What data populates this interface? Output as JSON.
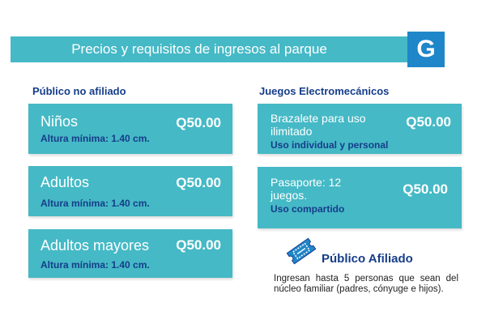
{
  "header": {
    "title": "Precios y requisitos de ingresos al parque",
    "logo_letter": "G"
  },
  "left_section": {
    "title": "Público no afiliado",
    "cards": [
      {
        "name": "Niños",
        "price": "Q50.00",
        "note": "Altura mínima: 1.40 cm."
      },
      {
        "name": "Adultos",
        "price": "Q50.00",
        "note": "Altura mínima: 1.40 cm."
      },
      {
        "name": "Adultos mayores",
        "price": "Q50.00",
        "note": "Altura mínima: 1.40 cm."
      }
    ]
  },
  "right_section": {
    "title": "Juegos Electromecánicos",
    "cards": [
      {
        "name": "Brazalete para uso ilimitado",
        "price": "Q50.00",
        "note": "Uso individual y personal"
      },
      {
        "name": "Pasaporte: 12 juegos.",
        "price": "Q50.00",
        "note": "Uso compartido"
      }
    ]
  },
  "afiliado": {
    "title": "Público Afiliado",
    "text": "Ingresan hasta 5 personas que sean del núcleo familiar (padres, cónyuge e hijos).",
    "icon": "ticket-icon"
  },
  "colors": {
    "accent": "#45b9c6",
    "dark_blue": "#163d8a",
    "logo_blue": "#1f86c9"
  }
}
